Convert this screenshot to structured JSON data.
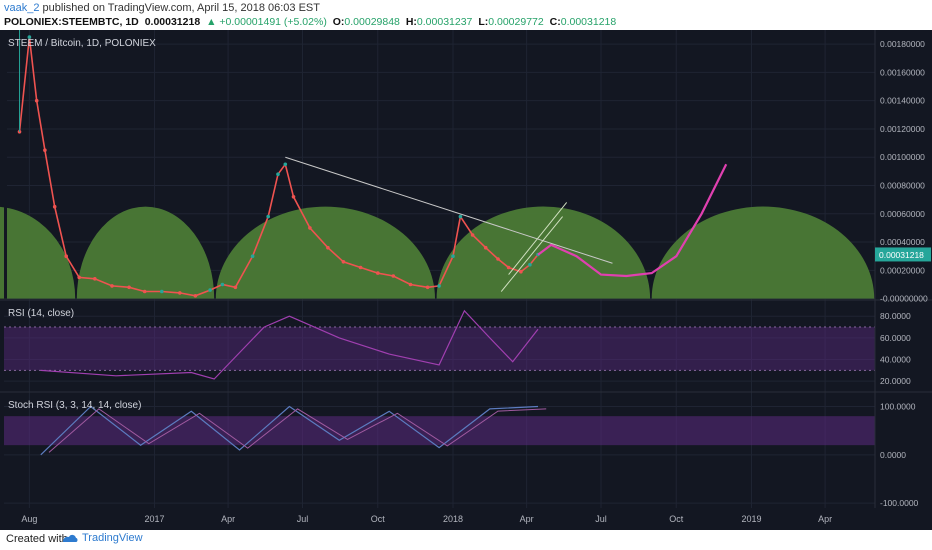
{
  "header": {
    "author": "vaak_2",
    "published": "published on TradingView.com, April 15, 2018 06:03 EST",
    "symbol": "POLONIEX:STEEMBTC, 1D",
    "last": "0.00031218",
    "change": "▲ +0.00001491 (+5.02%)",
    "o_label": "O:",
    "o": "0.00029848",
    "h_label": "H:",
    "h": "0.00031237",
    "l_label": "L:",
    "l": "0.00029772",
    "c_label": "C:",
    "c": "0.00031218"
  },
  "footer": {
    "created_with": "Created with",
    "brand": "TradingView"
  },
  "colors": {
    "background": "#131722",
    "grid": "#1f2433",
    "arc_fill": "#4b7a36",
    "candle_up": "#26a69a",
    "candle_down": "#ef5350",
    "projection": "#e040b0",
    "rsi_band": "#5b2a80",
    "rsi_line": "#a03fb0",
    "stoch_band": "#5b2a80",
    "stoch_k": "#5c7cc0",
    "stoch_d": "#a05aa0",
    "price_badge": "#26a69a",
    "trendline": "#c8c8c8",
    "channel": "#d0e0c0"
  },
  "chart_data": [
    {
      "type": "line",
      "title": "STEEM / Bitcoin, 1D, POLONIEX",
      "series": [
        {
          "x": [
            "2016-07-20",
            "2016-08-01",
            "2016-08-10",
            "2016-08-20",
            "2016-09-01",
            "2016-09-15",
            "2016-10-01",
            "2016-10-20",
            "2016-11-10",
            "2016-12-01",
            "2016-12-20",
            "2017-01-10",
            "2017-02-01",
            "2017-02-20",
            "2017-03-10",
            "2017-03-25",
            "2017-04-10",
            "2017-05-01",
            "2017-05-20",
            "2017-06-01",
            "2017-06-10",
            "2017-06-20",
            "2017-07-10",
            "2017-08-01",
            "2017-08-20",
            "2017-09-10",
            "2017-10-01",
            "2017-10-20",
            "2017-11-10",
            "2017-12-01",
            "2017-12-15",
            "2018-01-01",
            "2018-01-10",
            "2018-01-25",
            "2018-02-10",
            "2018-02-25",
            "2018-03-10",
            "2018-03-25",
            "2018-04-05",
            "2018-04-15"
          ],
          "values": [
            0.00118,
            0.00185,
            0.0014,
            0.00105,
            0.00065,
            0.0003,
            0.00015,
            0.00014,
            9e-05,
            8e-05,
            5e-05,
            5e-05,
            4e-05,
            2e-05,
            6e-05,
            0.0001,
            8e-05,
            0.0003,
            0.00058,
            0.00088,
            0.00095,
            0.00072,
            0.0005,
            0.00036,
            0.00026,
            0.00022,
            0.00018,
            0.00016,
            0.0001,
            8e-05,
            9e-05,
            0.0003,
            0.00058,
            0.00045,
            0.00036,
            0.00028,
            0.00022,
            0.00019,
            0.00024,
            0.00031218
          ]
        },
        {
          "x": [
            "2018-04-15",
            "2018-05-01",
            "2018-06-01",
            "2018-07-01",
            "2018-08-01",
            "2018-09-01",
            "2018-10-01",
            "2018-11-01",
            "2018-12-01"
          ],
          "values": [
            0.00031,
            0.00038,
            0.0003,
            0.00017,
            0.00016,
            0.00018,
            0.0003,
            0.0006,
            0.00095
          ]
        }
      ],
      "ylim": [
        -1e-05,
        0.0019
      ],
      "yticks": [
        "0.00180000",
        "0.00160000",
        "0.00140000",
        "0.00120000",
        "0.00100000",
        "0.00080000",
        "0.00060000",
        "0.00040000",
        "0.00020000",
        "-0.00000000"
      ],
      "price_label": "0.00031218",
      "xticks": [
        "Aug",
        "2017",
        "Apr",
        "Jul",
        "Oct",
        "2018",
        "Apr",
        "Jul",
        "Oct",
        "2019",
        "Apr"
      ],
      "grid": true
    },
    {
      "type": "line",
      "title": "RSI (14, close)",
      "ylim": [
        10,
        95
      ],
      "yticks": [
        "80.0000",
        "60.0000",
        "40.0000",
        "20.0000"
      ],
      "band": [
        30,
        70
      ],
      "series": [
        {
          "x": [
            "2016-08",
            "2016-11",
            "2017-02",
            "2017-03",
            "2017-05",
            "2017-06",
            "2017-08",
            "2017-10",
            "2017-12",
            "2018-01",
            "2018-02",
            "2018-03",
            "2018-04"
          ],
          "values": [
            30,
            25,
            28,
            22,
            70,
            80,
            60,
            45,
            35,
            85,
            60,
            38,
            68
          ]
        }
      ]
    },
    {
      "type": "line",
      "title": "Stoch RSI (3, 3, 14, 14, close)",
      "ylim": [
        -110,
        130
      ],
      "yticks": [
        "100.0000",
        "0.0000",
        "-100.0000"
      ],
      "band": [
        20,
        80
      ],
      "series": [
        {
          "x": [
            "2016-08",
            "2016-10",
            "2016-12",
            "2017-02",
            "2017-04",
            "2017-06",
            "2017-08",
            "2017-10",
            "2017-12",
            "2018-02",
            "2018-04"
          ],
          "values": [
            0,
            100,
            20,
            90,
            10,
            100,
            30,
            90,
            15,
            95,
            100
          ]
        }
      ]
    }
  ]
}
